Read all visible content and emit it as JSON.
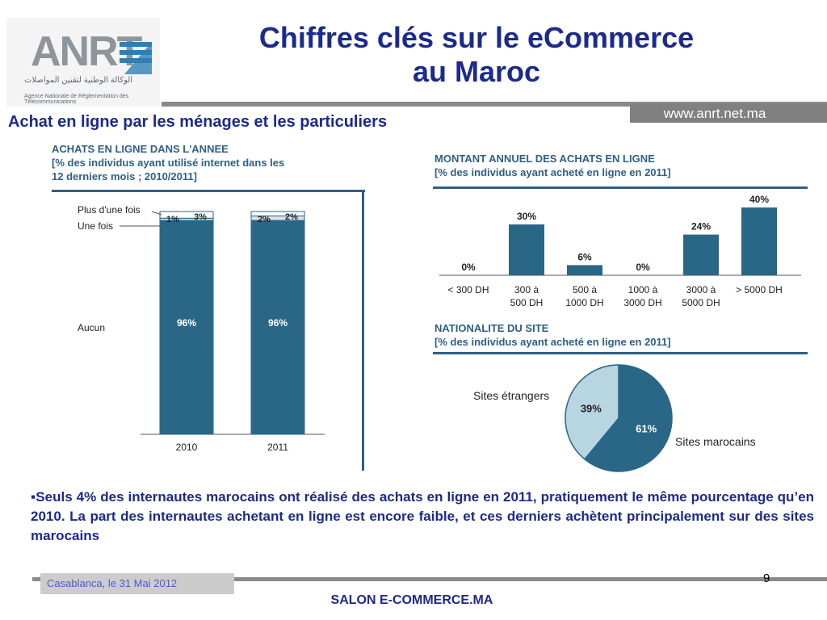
{
  "header": {
    "logo_text": "ANRT",
    "logo_arabic": "الوكالة الوطنية لتقنين المواصلات",
    "logo_caption": "Agence Nationale de Réglementation des Télécommunications",
    "title_line1": "Chiffres clés sur  le eCommerce",
    "title_line2": "au Maroc",
    "url": "www.anrt.net.ma",
    "subtitle": "Achat en ligne par les ménages et les particuliers"
  },
  "colors": {
    "bar": "#2a6686",
    "pie_light": "#b8d5e2",
    "title": "#1c2a8c",
    "chart_title": "#2f5f85"
  },
  "chart_data": [
    {
      "type": "bar",
      "stacked": true,
      "title_line1": "ACHATS EN LIGNE DANS L'ANNEE",
      "title_line2": "[% des individus ayant utilisé internet dans les",
      "title_line3": "12 derniers mois ; 2010/2011]",
      "categories": [
        "2010",
        "2011"
      ],
      "series": [
        {
          "name": "Aucun",
          "values": [
            96,
            96
          ],
          "labels": [
            "96%",
            "96%"
          ]
        },
        {
          "name": "Une fois",
          "values": [
            1,
            2
          ],
          "labels": [
            "1%",
            "2%"
          ]
        },
        {
          "name": "Plus d'une fois",
          "values": [
            3,
            2
          ],
          "labels": [
            "3%",
            "2%"
          ]
        }
      ],
      "ylim": [
        0,
        100
      ]
    },
    {
      "type": "bar",
      "title_line1": "MONTANT ANNUEL DES ACHATS EN LIGNE",
      "title_line2": "[% des individus ayant acheté en ligne en 2011]",
      "categories": [
        {
          "line1": "< 300 DH",
          "line2": ""
        },
        {
          "line1": "300 à",
          "line2": "500 DH"
        },
        {
          "line1": "500 à",
          "line2": "1000 DH"
        },
        {
          "line1": "1000 à",
          "line2": "3000 DH"
        },
        {
          "line1": "3000 à",
          "line2": "5000 DH"
        },
        {
          "line1": "> 5000 DH",
          "line2": ""
        }
      ],
      "values": [
        0,
        30,
        6,
        0,
        24,
        40
      ],
      "labels": [
        "0%",
        "30%",
        "6%",
        "0%",
        "24%",
        "40%"
      ],
      "ylim": [
        0,
        40
      ]
    },
    {
      "type": "pie",
      "title_line1": "NATIONALITE DU SITE",
      "title_line2": "[% des individus ayant acheté en ligne en 2011]",
      "slices": [
        {
          "name": "Sites marocains",
          "value": 61,
          "label": "61%"
        },
        {
          "name": "Sites étrangers",
          "value": 39,
          "label": "39%"
        }
      ]
    }
  ],
  "bullet_text": "▪Seuls 4% des internautes marocains ont réalisé des achats en ligne en 2011, pratiquement le même pourcentage qu’en 2010. La part des internautes achetant en ligne est encore faible, et ces derniers achètent principalement sur des sites marocains",
  "footer": {
    "date": "Casablanca, le 31 Mai 2012",
    "page": "9",
    "event": "SALON E-COMMERCE.MA"
  }
}
